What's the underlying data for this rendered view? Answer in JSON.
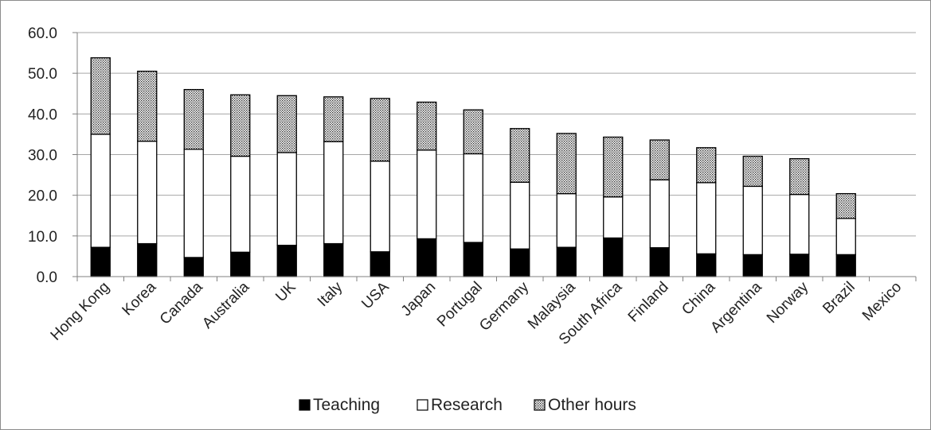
{
  "chart_data": {
    "type": "bar",
    "stacked": true,
    "categories": [
      "Hong Kong",
      "Korea",
      "Canada",
      "Australia",
      "UK",
      "Italy",
      "USA",
      "Japan",
      "Portugal",
      "Germany",
      "Malaysia",
      "South Africa",
      "Finland",
      "China",
      "Argentina",
      "Norway",
      "Brazil",
      "Mexico"
    ],
    "series": [
      {
        "name": "Teaching",
        "fill": "black",
        "values": [
          7.2,
          8.1,
          4.7,
          6.0,
          7.7,
          8.1,
          6.1,
          9.3,
          8.4,
          6.8,
          7.2,
          9.5,
          7.1,
          5.6,
          5.4,
          5.5,
          5.4,
          0
        ]
      },
      {
        "name": "Research",
        "fill": "white",
        "values": [
          27.8,
          25.2,
          26.6,
          23.6,
          22.8,
          25.1,
          22.3,
          21.8,
          21.8,
          16.4,
          13.2,
          10.1,
          16.7,
          17.5,
          16.8,
          14.7,
          8.9,
          0
        ]
      },
      {
        "name": "Other hours",
        "fill": "dotted",
        "values": [
          18.8,
          17.2,
          14.7,
          15.1,
          14.0,
          11.0,
          15.4,
          11.8,
          10.8,
          13.2,
          14.8,
          14.7,
          9.8,
          8.6,
          7.4,
          8.8,
          6.1,
          0
        ]
      }
    ],
    "y_ticks": [
      "0.0",
      "10.0",
      "20.0",
      "30.0",
      "40.0",
      "50.0",
      "60.0"
    ],
    "ylim": [
      0,
      60
    ],
    "grid": true,
    "legend_position": "bottom"
  }
}
